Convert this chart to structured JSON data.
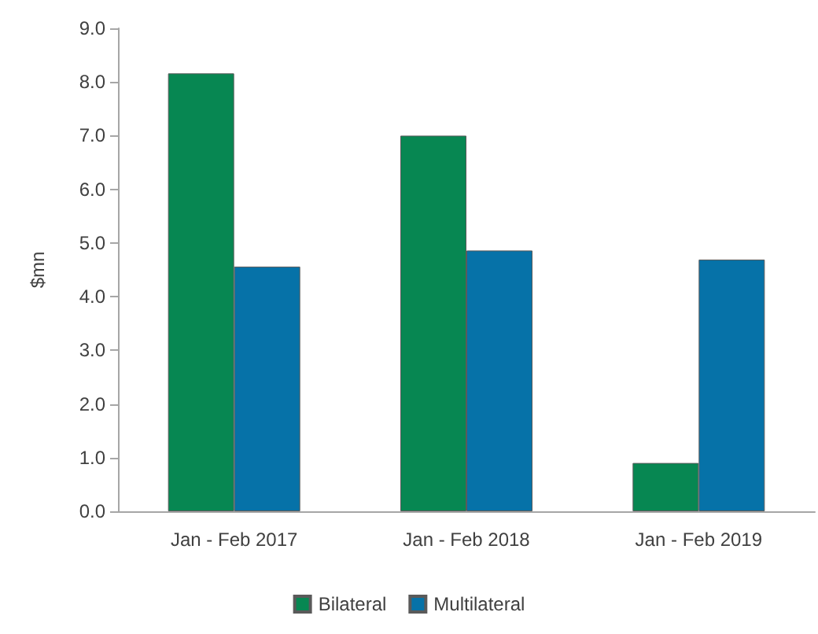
{
  "chart_data": {
    "type": "bar",
    "ylabel": "$mn",
    "categories": [
      "Jan - Feb 2017",
      "Jan - Feb 2018",
      "Jan - Feb 2019"
    ],
    "series": [
      {
        "name": "Bilateral",
        "color": "#078752",
        "values": [
          8.16,
          7.0,
          0.9
        ]
      },
      {
        "name": "Multilateral",
        "color": "#0672a8",
        "values": [
          4.56,
          4.86,
          4.69
        ]
      }
    ],
    "ylim": [
      0,
      9
    ],
    "yticks": [
      {
        "value": 0,
        "label": "0.0"
      },
      {
        "value": 1,
        "label": "1.0"
      },
      {
        "value": 2,
        "label": "2.0"
      },
      {
        "value": 3,
        "label": "3.0"
      },
      {
        "value": 4,
        "label": "4.0"
      },
      {
        "value": 5,
        "label": "5.0"
      },
      {
        "value": 6,
        "label": "6.0"
      },
      {
        "value": 7,
        "label": "7.0"
      },
      {
        "value": 8,
        "label": "8.0"
      },
      {
        "value": 9,
        "label": "9.0"
      }
    ],
    "grid": false,
    "legend": "bottom"
  }
}
